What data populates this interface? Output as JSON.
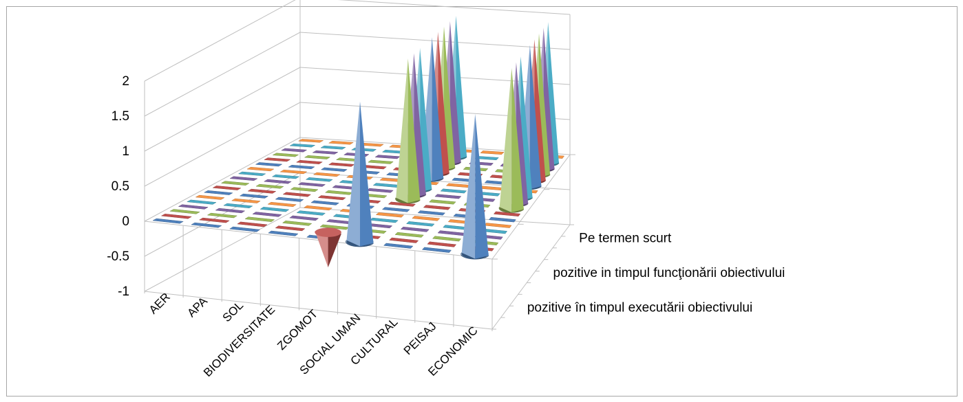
{
  "chart_data": {
    "type": "bar",
    "subtype": "3d-cone",
    "title": "",
    "xlabel": "",
    "ylabel": "",
    "ylim": [
      -1,
      2
    ],
    "yticks": [
      "-1",
      "-0.5",
      "0",
      "0.5",
      "1",
      "1.5",
      "2"
    ],
    "grid": true,
    "categories": [
      "AER",
      "APA",
      "SOL",
      "BIODIVERSITATE",
      "ZGOMOT",
      "SOCIAL UMAN",
      "CULTURAL",
      "PEISAJ",
      "ECONOMIC"
    ],
    "depth_labels": [
      "pozitive în timpul executării obiectivului",
      "pozitive in timpul funcţionării obiectivului",
      "Pe termen scurt"
    ],
    "sub_series_colors": [
      "#4f81bd",
      "#c0504d",
      "#9bbb59",
      "#8064a2",
      "#4bacc6",
      "#f79646"
    ],
    "rows": [
      {
        "label": "pozitive în timpul executării obiectivului",
        "values": [
          [
            0,
            0,
            0,
            0,
            0,
            0
          ],
          [
            0,
            0,
            0,
            0,
            0,
            0
          ],
          [
            0,
            0,
            0,
            0,
            0,
            0
          ],
          [
            0,
            0,
            0,
            0,
            0,
            0
          ],
          [
            0,
            -0.5,
            0,
            0,
            0,
            0
          ],
          [
            2,
            0,
            0,
            0,
            0,
            0
          ],
          [
            0,
            0,
            0,
            0,
            0,
            0
          ],
          [
            0,
            0,
            0,
            0,
            0,
            0
          ],
          [
            2,
            0,
            0,
            0,
            0,
            0
          ]
        ]
      },
      {
        "label": "pozitive in timpul funcţionării obiectivului",
        "values": [
          [
            0,
            0,
            0,
            0,
            0,
            0
          ],
          [
            0,
            0,
            0,
            0,
            0,
            0
          ],
          [
            0,
            0,
            0,
            0,
            0,
            0
          ],
          [
            0,
            0,
            0,
            0,
            0,
            0
          ],
          [
            0,
            0,
            0,
            0,
            0,
            0
          ],
          [
            0,
            0,
            2,
            2,
            2,
            0
          ],
          [
            0,
            0,
            0,
            0,
            0,
            0
          ],
          [
            0,
            0,
            0,
            0,
            0,
            0
          ],
          [
            0,
            0,
            2,
            2,
            2,
            0
          ]
        ]
      },
      {
        "label": "Pe termen scurt",
        "values": [
          [
            0,
            0,
            0,
            0,
            0,
            0
          ],
          [
            0,
            0,
            0,
            0,
            0,
            0
          ],
          [
            0,
            0,
            0,
            0,
            0,
            0
          ],
          [
            0,
            0,
            0,
            0,
            0,
            0
          ],
          [
            0,
            0,
            0,
            0,
            0,
            0
          ],
          [
            2,
            2,
            2,
            2,
            2,
            0
          ],
          [
            0,
            0,
            0,
            0,
            0,
            0
          ],
          [
            0,
            0,
            0,
            0,
            0,
            0
          ],
          [
            2,
            2,
            2,
            2,
            2,
            0
          ]
        ]
      }
    ]
  }
}
